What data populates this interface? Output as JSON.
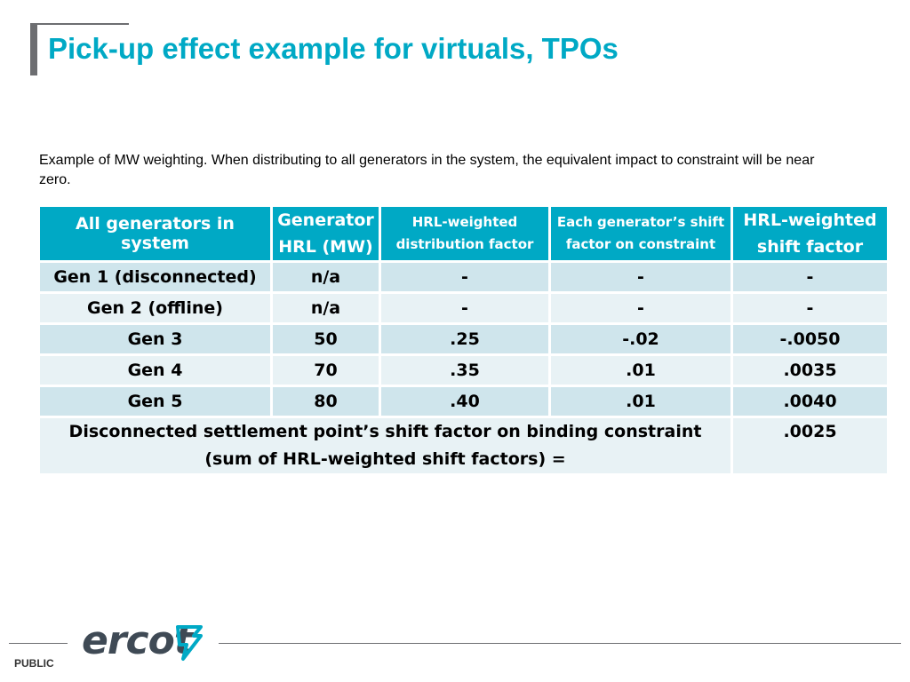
{
  "title": "Pick-up effect example for virtuals, TPOs",
  "intro_text": "Example of MW weighting. When distributing to all generators in the system, the equivalent impact to constraint will be near zero.",
  "table": {
    "headers": {
      "col1": "All generators in system",
      "col2_line1": "Generator",
      "col2_line2": "HRL (MW)",
      "col3_line1": "HRL-weighted",
      "col3_line2": "distribution factor",
      "col4_line1": "Each generator’s shift",
      "col4_line2": "factor on constraint",
      "col5_line1": "HRL-weighted",
      "col5_line2": "shift factor"
    },
    "rows": [
      {
        "name": "Gen 1 (disconnected)",
        "hrl": "n/a",
        "dist": "-",
        "shift": "-",
        "weighted": "-"
      },
      {
        "name": "Gen 2 (offline)",
        "hrl": "n/a",
        "dist": "-",
        "shift": "-",
        "weighted": "-"
      },
      {
        "name": "Gen 3",
        "hrl": "50",
        "dist": ".25",
        "shift": "-.02",
        "weighted": "-.0050"
      },
      {
        "name": "Gen 4",
        "hrl": "70",
        "dist": ".35",
        "shift": ".01",
        "weighted": ".0035"
      },
      {
        "name": "Gen 5",
        "hrl": "80",
        "dist": ".40",
        "shift": ".01",
        "weighted": ".0040"
      }
    ],
    "total_label_line1": "Disconnected settlement point’s shift factor on binding constraint",
    "total_label_line2": "(sum of HRL-weighted shift factors) =",
    "total_value": ".0025"
  },
  "footer": {
    "classification": "PUBLIC",
    "logo_text": "ercot",
    "logo_color": "#00a9c5"
  },
  "colors": {
    "accent": "#00a9c5",
    "row_dark": "#cfe5ec",
    "row_light": "#e8f2f5",
    "bar_gray": "#6d6e71"
  }
}
